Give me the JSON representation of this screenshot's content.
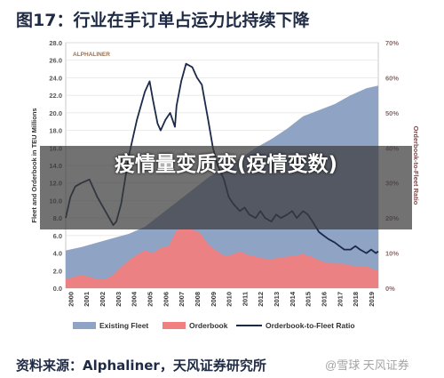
{
  "figure_title": "图17：行业在手订单占运力比持续下降",
  "overlay_text": "疫情量变质变(疫情变数)",
  "source": "资料来源：Alphaliner，天风证券研究所",
  "watermark": "@雪球 天风证券",
  "chart_data": {
    "type": "area",
    "title": "",
    "xlabel": "",
    "ylabel": "Fleet and Orderbook in TEU Millions",
    "y2label": "Orderbook-to-Fleet Ratio",
    "brand": "ALPHALINER",
    "ylim": [
      0,
      28
    ],
    "y2lim": [
      0,
      70
    ],
    "yticks": [
      "0.0",
      "2.0",
      "4.0",
      "6.0",
      "8.0",
      "10.0",
      "12.0",
      "14.0",
      "16.0",
      "18.0",
      "20.0",
      "22.0",
      "24.0",
      "26.0",
      "28.0"
    ],
    "y2ticks": [
      "0%",
      "10%",
      "20%",
      "30%",
      "40%",
      "50%",
      "60%",
      "70%"
    ],
    "xticks": [
      "2000",
      "2001",
      "2002",
      "2003",
      "2004",
      "2005",
      "2006",
      "2007",
      "2008",
      "2009",
      "2010",
      "2011",
      "2012",
      "2013",
      "2014",
      "2015",
      "2016",
      "2017",
      "2018",
      "2019"
    ],
    "xlim": [
      2000,
      2019.75
    ],
    "legend": [
      "Existing Fleet",
      "Orderbook",
      "Orderbook-to-Fleet Ratio"
    ],
    "colors": {
      "fleet": "#8fa3c4",
      "orderbook": "#f08080",
      "ratio": "#1b2a4a"
    },
    "series": [
      {
        "name": "Existing Fleet",
        "x": [
          2000,
          2001,
          2002,
          2003,
          2004,
          2005,
          2006,
          2007,
          2008,
          2009,
          2010,
          2011,
          2012,
          2013,
          2014,
          2015,
          2016,
          2017,
          2018,
          2019,
          2019.75
        ],
        "values": [
          4.3,
          4.7,
          5.2,
          5.7,
          6.2,
          7.0,
          8.4,
          9.8,
          11.2,
          12.6,
          13.8,
          14.8,
          16.0,
          17.0,
          18.2,
          19.6,
          20.3,
          21.0,
          22.0,
          22.8,
          23.1
        ]
      },
      {
        "name": "Orderbook",
        "x": [
          2000,
          2000.5,
          2001,
          2001.5,
          2002,
          2002.5,
          2003,
          2003.5,
          2004,
          2004.5,
          2005,
          2005.5,
          2006,
          2006.5,
          2007,
          2007.5,
          2008,
          2008.5,
          2009,
          2009.5,
          2010,
          2010.5,
          2011,
          2011.5,
          2012,
          2012.5,
          2013,
          2013.5,
          2014,
          2014.5,
          2015,
          2015.5,
          2016,
          2016.5,
          2017,
          2017.5,
          2018,
          2018.5,
          2019,
          2019.5,
          2019.75
        ],
        "values": [
          1.0,
          1.3,
          1.5,
          1.3,
          1.0,
          1.0,
          1.5,
          2.4,
          3.2,
          3.8,
          4.3,
          4.0,
          4.6,
          4.8,
          6.6,
          6.8,
          6.7,
          6.3,
          5.0,
          4.3,
          3.7,
          3.8,
          4.2,
          3.8,
          3.6,
          3.4,
          3.3,
          3.5,
          3.6,
          3.7,
          3.9,
          3.6,
          3.2,
          2.9,
          2.8,
          2.8,
          2.6,
          2.5,
          2.5,
          2.1,
          2.1
        ]
      },
      {
        "name": "Orderbook-to-Fleet Ratio",
        "x": [
          2000,
          2000.3,
          2000.6,
          2001,
          2001.5,
          2002,
          2002.5,
          2003,
          2003.2,
          2003.5,
          2004,
          2004.5,
          2005,
          2005.3,
          2005.5,
          2005.8,
          2006,
          2006.3,
          2006.6,
          2006.9,
          2007,
          2007.3,
          2007.6,
          2008,
          2008.3,
          2008.6,
          2009,
          2009.3,
          2009.6,
          2010,
          2010.3,
          2010.6,
          2011,
          2011.3,
          2011.6,
          2012,
          2012.3,
          2012.6,
          2013,
          2013.3,
          2013.6,
          2014,
          2014.3,
          2014.6,
          2015,
          2015.3,
          2015.6,
          2016,
          2016.3,
          2016.6,
          2017,
          2017.3,
          2017.6,
          2018,
          2018.3,
          2018.6,
          2019,
          2019.3,
          2019.6,
          2019.75
        ],
        "values": [
          20,
          26,
          29,
          30,
          31,
          26,
          22,
          18,
          19,
          24,
          38,
          48,
          56,
          59,
          54,
          47,
          45,
          48,
          50,
          46,
          52,
          59,
          64,
          63,
          60,
          58,
          48,
          40,
          35,
          31,
          26,
          24,
          22,
          23,
          21,
          20,
          22,
          20,
          19,
          21,
          20,
          21,
          22,
          20,
          22,
          21,
          19,
          16,
          15,
          14,
          13,
          12,
          11,
          11,
          12,
          11,
          10,
          11,
          10,
          10.5
        ]
      }
    ],
    "grid": "horizontal",
    "legend_position": "bottom"
  }
}
